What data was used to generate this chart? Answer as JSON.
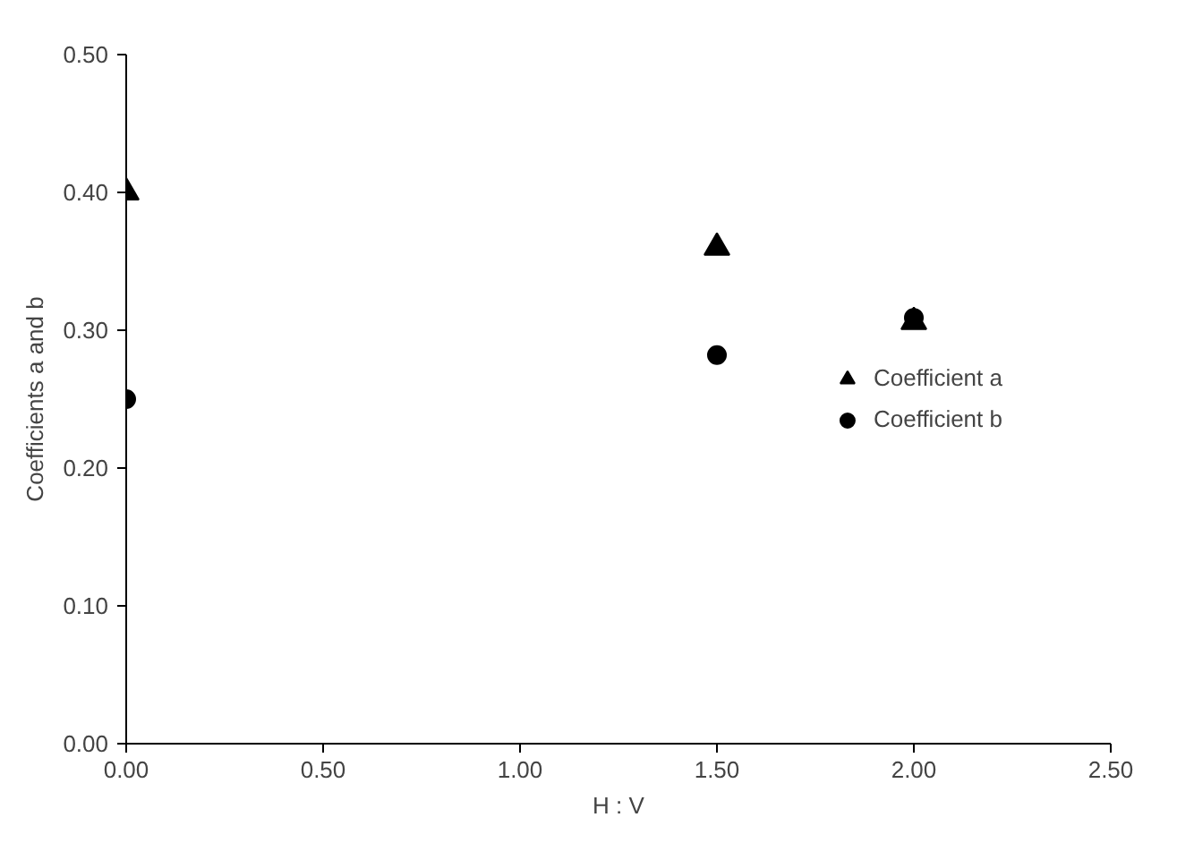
{
  "chart_data": {
    "type": "scatter",
    "xlabel": "H : V",
    "ylabel": "Coefficients a and b",
    "x": [
      0,
      1.5,
      2.0
    ],
    "series": [
      {
        "name": "Coefficient a",
        "color": "#000000",
        "marker": "triangle",
        "values": [
          0.4,
          0.36,
          0.306
        ]
      },
      {
        "name": "Coefficient b",
        "color": "#000000",
        "marker": "circle",
        "values": [
          0.25,
          0.282,
          0.309
        ]
      }
    ],
    "xlim": [
      0,
      2.5
    ],
    "ylim": [
      0,
      0.5
    ],
    "xticks": [
      {
        "value": 0,
        "label": "0.00"
      },
      {
        "value": 0.5,
        "label": "0.50"
      },
      {
        "value": 1,
        "label": "1.00"
      },
      {
        "value": 1.5,
        "label": "1.50"
      },
      {
        "value": 2,
        "label": "2.00"
      },
      {
        "value": 2.5,
        "label": "2.50"
      }
    ],
    "yticks": [
      {
        "value": 0,
        "label": "0.00"
      },
      {
        "value": 0.1,
        "label": "0.10"
      },
      {
        "value": 0.2,
        "label": "0.20"
      },
      {
        "value": 0.3,
        "label": "0.30"
      },
      {
        "value": 0.4,
        "label": "0.40"
      },
      {
        "value": 0.5,
        "label": "0.50"
      }
    ],
    "grid": false,
    "legend": "right"
  }
}
